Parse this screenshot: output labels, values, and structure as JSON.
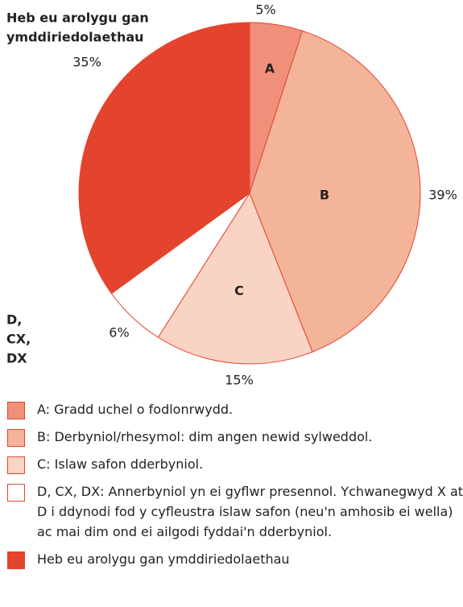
{
  "chart_data": {
    "type": "pie",
    "slices": [
      {
        "label": [
          "A"
        ],
        "name": "A:  Gradd uchel o fodlonrwydd.",
        "value": 5,
        "value_label": "5%",
        "color": "#f0907a"
      },
      {
        "label": [
          "B"
        ],
        "name": "B:  Derbyniol/rhesymol: dim angen newid sylweddol.",
        "value": 39,
        "value_label": "39%",
        "color": "#f4b49a"
      },
      {
        "label": [
          "C"
        ],
        "name": "C:  Islaw safon dderbyniol.",
        "value": 15,
        "value_label": "15%",
        "color": "#f9d4c4"
      },
      {
        "label": [
          "D,",
          "CX,",
          "DX"
        ],
        "name": "D, CX, DX:  Annerbyniol yn ei gyflwr presennol. Ychwanegwyd X at D i ddynodi fod y cyfleustra islaw safon (neu'n amhosib ei wella) ac mai dim ond ei ailgodi fyddai'n dderbyniol.",
        "value": 6,
        "value_label": "6%",
        "color": "#ffffff"
      },
      {
        "label": [
          "Heb eu arolygu gan",
          "ymddiriedolaethau"
        ],
        "name": "Heb eu arolygu gan ymddiriedolaethau",
        "value": 35,
        "value_label": "35%",
        "color": "#e4432d"
      }
    ]
  }
}
